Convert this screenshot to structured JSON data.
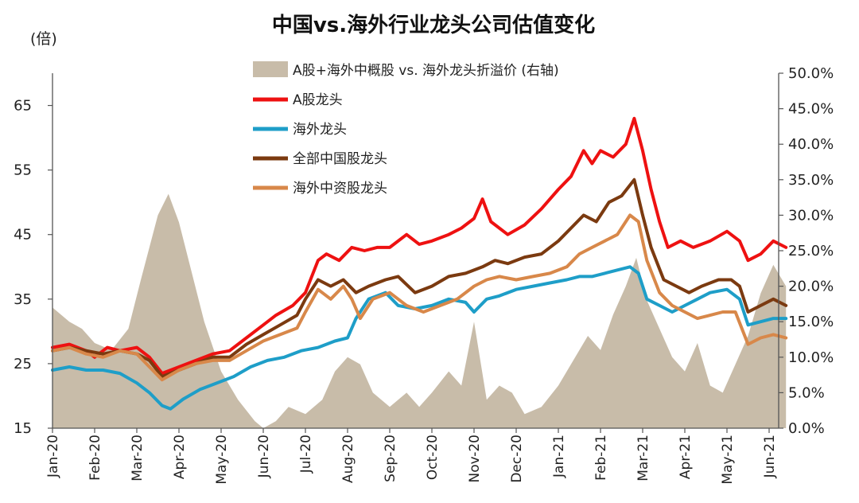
{
  "chart_data": {
    "type": "line",
    "title": "中国vs.海外行业龙头公司估值变化",
    "y_left_label": "(倍)",
    "y_left_range": [
      15,
      70
    ],
    "y_left_ticks": [
      "15",
      "25",
      "35",
      "45",
      "55",
      "65"
    ],
    "y_left_tick_values": [
      15,
      25,
      35,
      45,
      55,
      65
    ],
    "y_right_range": [
      0,
      50
    ],
    "y_right_ticks": [
      "0.0%",
      "5.0%",
      "10.0%",
      "15.0%",
      "20.0%",
      "25.0%",
      "30.0%",
      "35.0%",
      "40.0%",
      "45.0%",
      "50.0%"
    ],
    "y_right_tick_values": [
      0,
      5,
      10,
      15,
      20,
      25,
      30,
      35,
      40,
      45,
      50
    ],
    "x_ticks": [
      "Jan-20",
      "Feb-20",
      "Mar-20",
      "Apr-20",
      "May-20",
      "Jun-20",
      "Jul-20",
      "Aug-20",
      "Sep-20",
      "Oct-20",
      "Nov-20",
      "Dec-20",
      "Jan-21",
      "Feb-21",
      "Mar-21",
      "Apr-21",
      "May-21",
      "Jun-21"
    ],
    "x_range": [
      0,
      17.4
    ],
    "legend": [
      {
        "label": "A股+海外中概股 vs. 海外龙头折溢价 (右轴)",
        "kind": "area",
        "color": "#c8bca9"
      },
      {
        "label": "A股龙头",
        "kind": "line",
        "color": "#ee1111"
      },
      {
        "label": "海外龙头",
        "kind": "line",
        "color": "#1e9ec8"
      },
      {
        "label": "全部中国股龙头",
        "kind": "line",
        "color": "#7b3a10"
      },
      {
        "label": "海外中资股龙头",
        "kind": "line",
        "color": "#d8884a"
      }
    ],
    "series": [
      {
        "name": "A股+海外中概股 vs. 海外龙头折溢价 (右轴)",
        "type": "area",
        "axis": "right",
        "color": "#c8bca9",
        "points": [
          [
            0,
            17
          ],
          [
            0.4,
            15
          ],
          [
            0.7,
            14
          ],
          [
            1.0,
            12
          ],
          [
            1.4,
            11
          ],
          [
            1.8,
            14
          ],
          [
            2.1,
            21
          ],
          [
            2.5,
            30
          ],
          [
            2.75,
            33
          ],
          [
            3.0,
            29
          ],
          [
            3.3,
            22
          ],
          [
            3.6,
            15
          ],
          [
            4.0,
            8
          ],
          [
            4.4,
            4
          ],
          [
            4.8,
            1
          ],
          [
            5.0,
            0
          ],
          [
            5.3,
            1
          ],
          [
            5.6,
            3
          ],
          [
            6.0,
            2
          ],
          [
            6.4,
            4
          ],
          [
            6.7,
            8
          ],
          [
            7.0,
            10
          ],
          [
            7.3,
            9
          ],
          [
            7.6,
            5
          ],
          [
            8.0,
            3
          ],
          [
            8.4,
            5
          ],
          [
            8.7,
            3
          ],
          [
            9.0,
            5
          ],
          [
            9.4,
            8
          ],
          [
            9.7,
            6
          ],
          [
            10.0,
            15
          ],
          [
            10.3,
            4
          ],
          [
            10.6,
            6
          ],
          [
            10.9,
            5
          ],
          [
            11.2,
            2
          ],
          [
            11.6,
            3
          ],
          [
            12.0,
            6
          ],
          [
            12.4,
            10
          ],
          [
            12.7,
            13
          ],
          [
            13.0,
            11
          ],
          [
            13.3,
            16
          ],
          [
            13.6,
            20
          ],
          [
            13.85,
            24
          ],
          [
            14.1,
            18
          ],
          [
            14.4,
            14
          ],
          [
            14.7,
            10
          ],
          [
            15.0,
            8
          ],
          [
            15.3,
            12
          ],
          [
            15.6,
            6
          ],
          [
            15.9,
            5
          ],
          [
            16.2,
            9
          ],
          [
            16.5,
            13
          ],
          [
            16.8,
            19
          ],
          [
            17.1,
            23
          ],
          [
            17.4,
            20
          ]
        ]
      },
      {
        "name": "A股龙头",
        "axis": "left",
        "color": "#ee1111",
        "points": [
          [
            0,
            27.5
          ],
          [
            0.4,
            28
          ],
          [
            0.8,
            27
          ],
          [
            1.0,
            26
          ],
          [
            1.3,
            27.5
          ],
          [
            1.6,
            27
          ],
          [
            2.0,
            27.5
          ],
          [
            2.3,
            26
          ],
          [
            2.6,
            23.5
          ],
          [
            3.0,
            24.5
          ],
          [
            3.4,
            25.5
          ],
          [
            3.8,
            26.5
          ],
          [
            4.2,
            27
          ],
          [
            4.6,
            29
          ],
          [
            5.0,
            31
          ],
          [
            5.3,
            32.5
          ],
          [
            5.7,
            34
          ],
          [
            6.0,
            36
          ],
          [
            6.3,
            41
          ],
          [
            6.5,
            42
          ],
          [
            6.8,
            41
          ],
          [
            7.1,
            43
          ],
          [
            7.4,
            42.5
          ],
          [
            7.7,
            43
          ],
          [
            8.0,
            43
          ],
          [
            8.4,
            45
          ],
          [
            8.7,
            43.5
          ],
          [
            9.0,
            44
          ],
          [
            9.4,
            45
          ],
          [
            9.7,
            46
          ],
          [
            10.0,
            47.5
          ],
          [
            10.2,
            50.5
          ],
          [
            10.4,
            47
          ],
          [
            10.8,
            45
          ],
          [
            11.2,
            46.5
          ],
          [
            11.6,
            49
          ],
          [
            12.0,
            52
          ],
          [
            12.3,
            54
          ],
          [
            12.6,
            58
          ],
          [
            12.8,
            56
          ],
          [
            13.0,
            58
          ],
          [
            13.3,
            57
          ],
          [
            13.6,
            59
          ],
          [
            13.8,
            63
          ],
          [
            14.0,
            58
          ],
          [
            14.2,
            52
          ],
          [
            14.4,
            47
          ],
          [
            14.6,
            43
          ],
          [
            14.9,
            44
          ],
          [
            15.2,
            43
          ],
          [
            15.6,
            44
          ],
          [
            16.0,
            45.5
          ],
          [
            16.3,
            44
          ],
          [
            16.5,
            41
          ],
          [
            16.8,
            42
          ],
          [
            17.1,
            44
          ],
          [
            17.4,
            43
          ]
        ]
      },
      {
        "name": "海外龙头",
        "axis": "left",
        "color": "#1e9ec8",
        "points": [
          [
            0,
            24
          ],
          [
            0.4,
            24.5
          ],
          [
            0.8,
            24
          ],
          [
            1.2,
            24
          ],
          [
            1.6,
            23.5
          ],
          [
            2.0,
            22
          ],
          [
            2.3,
            20.5
          ],
          [
            2.6,
            18.5
          ],
          [
            2.8,
            18
          ],
          [
            3.1,
            19.5
          ],
          [
            3.5,
            21
          ],
          [
            3.9,
            22
          ],
          [
            4.3,
            23
          ],
          [
            4.7,
            24.5
          ],
          [
            5.1,
            25.5
          ],
          [
            5.5,
            26
          ],
          [
            5.9,
            27
          ],
          [
            6.3,
            27.5
          ],
          [
            6.7,
            28.5
          ],
          [
            7.0,
            29
          ],
          [
            7.2,
            32
          ],
          [
            7.5,
            35
          ],
          [
            7.9,
            36
          ],
          [
            8.2,
            34
          ],
          [
            8.6,
            33.5
          ],
          [
            9.0,
            34
          ],
          [
            9.4,
            35
          ],
          [
            9.8,
            34.5
          ],
          [
            10.0,
            33
          ],
          [
            10.3,
            35
          ],
          [
            10.6,
            35.5
          ],
          [
            11.0,
            36.5
          ],
          [
            11.4,
            37
          ],
          [
            11.8,
            37.5
          ],
          [
            12.2,
            38
          ],
          [
            12.5,
            38.5
          ],
          [
            12.8,
            38.5
          ],
          [
            13.1,
            39
          ],
          [
            13.4,
            39.5
          ],
          [
            13.7,
            40
          ],
          [
            13.9,
            39
          ],
          [
            14.1,
            35
          ],
          [
            14.4,
            34
          ],
          [
            14.7,
            33
          ],
          [
            15.0,
            34
          ],
          [
            15.3,
            35
          ],
          [
            15.6,
            36
          ],
          [
            16.0,
            36.5
          ],
          [
            16.3,
            35
          ],
          [
            16.5,
            31
          ],
          [
            16.8,
            31.5
          ],
          [
            17.1,
            32
          ],
          [
            17.4,
            32
          ]
        ]
      },
      {
        "name": "全部中国股龙头",
        "axis": "left",
        "color": "#7b3a10",
        "points": [
          [
            0,
            27
          ],
          [
            0.4,
            27.5
          ],
          [
            0.8,
            27
          ],
          [
            1.2,
            26.5
          ],
          [
            1.6,
            27
          ],
          [
            2.0,
            26.5
          ],
          [
            2.3,
            25.5
          ],
          [
            2.6,
            23
          ],
          [
            3.0,
            24
          ],
          [
            3.4,
            25
          ],
          [
            3.8,
            26
          ],
          [
            4.2,
            26
          ],
          [
            4.6,
            28
          ],
          [
            5.0,
            29.5
          ],
          [
            5.4,
            31
          ],
          [
            5.8,
            32.5
          ],
          [
            6.0,
            35
          ],
          [
            6.3,
            38
          ],
          [
            6.6,
            37
          ],
          [
            6.9,
            38
          ],
          [
            7.2,
            36
          ],
          [
            7.5,
            37
          ],
          [
            7.9,
            38
          ],
          [
            8.2,
            38.5
          ],
          [
            8.6,
            36
          ],
          [
            9.0,
            37
          ],
          [
            9.4,
            38.5
          ],
          [
            9.8,
            39
          ],
          [
            10.2,
            40
          ],
          [
            10.5,
            41
          ],
          [
            10.8,
            40.5
          ],
          [
            11.2,
            41.5
          ],
          [
            11.6,
            42
          ],
          [
            12.0,
            44
          ],
          [
            12.3,
            46
          ],
          [
            12.6,
            48
          ],
          [
            12.9,
            47
          ],
          [
            13.2,
            50
          ],
          [
            13.5,
            51
          ],
          [
            13.8,
            53.5
          ],
          [
            14.0,
            48
          ],
          [
            14.2,
            43
          ],
          [
            14.5,
            38
          ],
          [
            14.8,
            37
          ],
          [
            15.1,
            36
          ],
          [
            15.4,
            37
          ],
          [
            15.8,
            38
          ],
          [
            16.1,
            38
          ],
          [
            16.3,
            37
          ],
          [
            16.5,
            33
          ],
          [
            16.8,
            34
          ],
          [
            17.1,
            35
          ],
          [
            17.4,
            34
          ]
        ]
      },
      {
        "name": "海外中资股龙头",
        "axis": "left",
        "color": "#d8884a",
        "points": [
          [
            0,
            27
          ],
          [
            0.4,
            27.5
          ],
          [
            0.8,
            26.5
          ],
          [
            1.2,
            26
          ],
          [
            1.6,
            27
          ],
          [
            2.0,
            26.5
          ],
          [
            2.3,
            24.5
          ],
          [
            2.6,
            22.5
          ],
          [
            3.0,
            24
          ],
          [
            3.4,
            25
          ],
          [
            3.8,
            25.5
          ],
          [
            4.2,
            25.5
          ],
          [
            4.6,
            27
          ],
          [
            5.0,
            28.5
          ],
          [
            5.4,
            29.5
          ],
          [
            5.8,
            30.5
          ],
          [
            6.0,
            33
          ],
          [
            6.3,
            36.5
          ],
          [
            6.6,
            35
          ],
          [
            6.9,
            37
          ],
          [
            7.1,
            35
          ],
          [
            7.3,
            32
          ],
          [
            7.6,
            35
          ],
          [
            8.0,
            36
          ],
          [
            8.4,
            34
          ],
          [
            8.8,
            33
          ],
          [
            9.2,
            34
          ],
          [
            9.6,
            35
          ],
          [
            10.0,
            37
          ],
          [
            10.3,
            38
          ],
          [
            10.6,
            38.5
          ],
          [
            11.0,
            38
          ],
          [
            11.4,
            38.5
          ],
          [
            11.8,
            39
          ],
          [
            12.2,
            40
          ],
          [
            12.5,
            42
          ],
          [
            12.8,
            43
          ],
          [
            13.1,
            44
          ],
          [
            13.4,
            45
          ],
          [
            13.7,
            48
          ],
          [
            13.9,
            47
          ],
          [
            14.1,
            41
          ],
          [
            14.4,
            36
          ],
          [
            14.7,
            34
          ],
          [
            15.0,
            33
          ],
          [
            15.3,
            32
          ],
          [
            15.6,
            32.5
          ],
          [
            15.9,
            33
          ],
          [
            16.2,
            33
          ],
          [
            16.5,
            28
          ],
          [
            16.8,
            29
          ],
          [
            17.1,
            29.5
          ],
          [
            17.4,
            29
          ]
        ]
      }
    ]
  }
}
